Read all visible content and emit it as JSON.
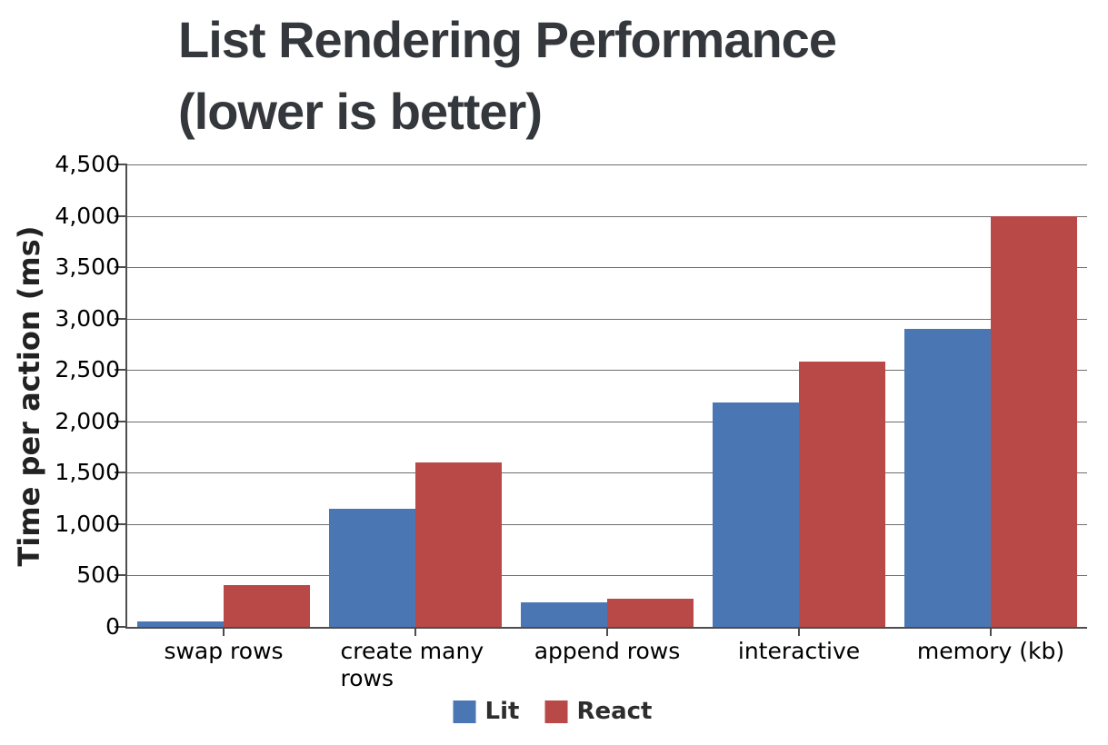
{
  "title": {
    "line1": "List Rendering Performance",
    "line2": "(lower is better)"
  },
  "chart_data": {
    "type": "bar",
    "title": "List Rendering Performance (lower is better)",
    "xlabel": "",
    "ylabel": "Time per action (ms)",
    "ylim": [
      0,
      4500
    ],
    "ytick_interval": 500,
    "ytick_labels": [
      "0",
      "500",
      "1,000",
      "1,500",
      "2,000",
      "2,500",
      "3,000",
      "3,500",
      "4,000",
      "4,500"
    ],
    "grid": true,
    "legend_position": "bottom",
    "categories": [
      "swap rows",
      "create many rows",
      "append rows",
      "interactive",
      "memory (kb)"
    ],
    "series": [
      {
        "name": "Lit",
        "color": "#4a76b3",
        "values": [
          55,
          1150,
          240,
          2180,
          2900
        ]
      },
      {
        "name": "React",
        "color": "#b84946",
        "values": [
          410,
          1600,
          275,
          2580,
          4000
        ]
      }
    ]
  },
  "colors": {
    "lit": "#4a76b3",
    "react": "#b84946",
    "gridline": "#6e6e6e",
    "axis": "#4d4d4d",
    "title_text": "#34383c"
  }
}
